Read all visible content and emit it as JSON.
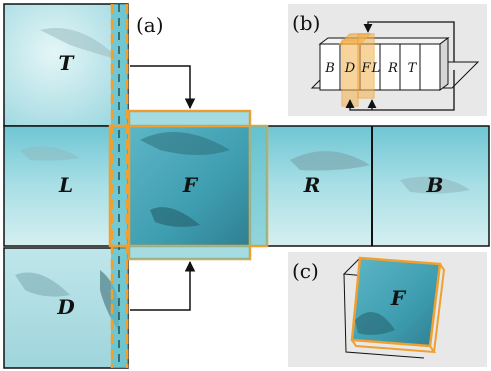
{
  "colors": {
    "accent": "#f0a030",
    "water_light": "#bfe8ec",
    "water_mid": "#7fd0dc",
    "water_deep": "#3f9fb3",
    "panel_bg": "#e8e8e8",
    "line": "#111111"
  },
  "panel_a": {
    "label": "(a)",
    "faces": {
      "top": "T",
      "left": "L",
      "front": "F",
      "right": "R",
      "back": "B",
      "down": "D"
    }
  },
  "panel_b": {
    "label": "(b)",
    "strip": [
      "B",
      "D",
      "F",
      "L",
      "R",
      "T"
    ]
  },
  "panel_c": {
    "label": "(c)",
    "face": "F"
  }
}
